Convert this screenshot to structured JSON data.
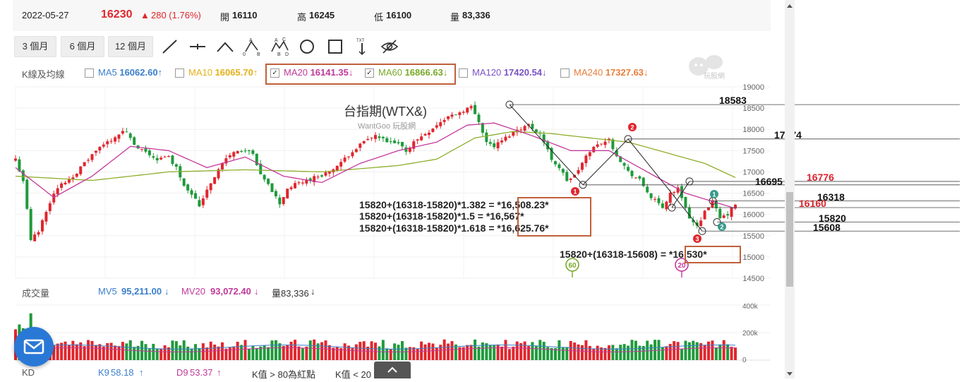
{
  "quote": {
    "date": "2022-05-27",
    "price": "16230",
    "change": "280 (1.76%)",
    "open_label": "開",
    "open": "16110",
    "high_label": "高",
    "high": "16245",
    "low_label": "低",
    "low": "16100",
    "volume_label": "量",
    "volume": "83,336",
    "up_color": "#e0262d"
  },
  "toolbar": {
    "periods": [
      "3 個月",
      "6 個月",
      "12 個月"
    ],
    "tools": [
      "line-tool-icon",
      "hline-tool-icon",
      "wave-tool-icon",
      "abc-tool-icon",
      "abcd-tool-icon",
      "circle-tool-icon",
      "rect-tool-icon",
      "text-tool-icon",
      "hide-tool-icon"
    ],
    "tool_letters": {
      "a": "A",
      "b": "B",
      "c": "C",
      "d": "D",
      "zero": "0",
      "txt": "TXT"
    }
  },
  "ma": {
    "label": "K線及均線",
    "items": [
      {
        "name": "MA5",
        "value": "16062.60",
        "arrow": "↑",
        "checked": false,
        "color": "#3b7fcb"
      },
      {
        "name": "MA10",
        "value": "16065.70",
        "arrow": "↑",
        "checked": false,
        "color": "#e5b01a"
      },
      {
        "name": "MA20",
        "value": "16141.35",
        "arrow": "↓",
        "checked": true,
        "color": "#c0399a"
      },
      {
        "name": "MA60",
        "value": "16866.63",
        "arrow": "↓",
        "checked": true,
        "color": "#7aa92a"
      },
      {
        "name": "MA120",
        "value": "17420.54",
        "arrow": "↓",
        "checked": false,
        "color": "#7a52c7"
      },
      {
        "name": "MA240",
        "value": "17327.63",
        "arrow": "↓",
        "checked": false,
        "color": "#e77e3b"
      }
    ]
  },
  "logo_text": "玩股網",
  "chart_title": "台指期(WTX&)",
  "chart_subtitle": "WantGoo 玩股網",
  "annotations": {
    "fib1": "15820+(16318-15820)*1.382 = ",
    "fib1_val": "*16,508.23*",
    "fib2": "15820+(16318-15820)*1.5 = *16,567*",
    "fib3": "15820+(16318-15820)*1.618 = ",
    "fib3_val": "*16,625.76*",
    "calc": "15820+(16318-15608) = ",
    "calc_val": "*16,530*"
  },
  "levels": {
    "l18583": "18583",
    "l17774": "17774",
    "l16776": "16776",
    "l16695": "16695",
    "l16318": "16318",
    "l16160": "16160",
    "l15820": "15820",
    "l15608": "15608"
  },
  "markers": {
    "m1": "1",
    "m2": "2",
    "m3": "3",
    "g1": "1",
    "g2": "2",
    "c60": "60",
    "c20": "20"
  },
  "chart_data": {
    "type": "candlestick",
    "title": "台指期(WTX&)",
    "ylim": [
      14500,
      19000
    ],
    "yticks": [
      "19000",
      "18500",
      "18000",
      "17500",
      "17000",
      "16500",
      "16000",
      "15500",
      "15000",
      "14500"
    ],
    "close_path": [
      [
        0,
        17300
      ],
      [
        2,
        16800
      ],
      [
        4,
        15400
      ],
      [
        6,
        15600
      ],
      [
        8,
        16100
      ],
      [
        10,
        16500
      ],
      [
        12,
        16700
      ],
      [
        15,
        16900
      ],
      [
        18,
        17200
      ],
      [
        21,
        17500
      ],
      [
        24,
        17700
      ],
      [
        27,
        17900
      ],
      [
        29,
        17950
      ],
      [
        31,
        17600
      ],
      [
        34,
        17450
      ],
      [
        37,
        17300
      ],
      [
        40,
        17350
      ],
      [
        42,
        17100
      ],
      [
        44,
        16700
      ],
      [
        46,
        16500
      ],
      [
        48,
        16200
      ],
      [
        50,
        16600
      ],
      [
        52,
        16900
      ],
      [
        54,
        17200
      ],
      [
        56,
        17400
      ],
      [
        58,
        17500
      ],
      [
        60,
        17500
      ],
      [
        62,
        17400
      ],
      [
        64,
        16900
      ],
      [
        66,
        16700
      ],
      [
        68,
        16400
      ],
      [
        69,
        16250
      ],
      [
        71,
        16600
      ],
      [
        73,
        16700
      ],
      [
        76,
        16800
      ],
      [
        79,
        16900
      ],
      [
        82,
        17000
      ],
      [
        85,
        17200
      ],
      [
        88,
        17500
      ],
      [
        91,
        17700
      ],
      [
        94,
        17850
      ],
      [
        97,
        17700
      ],
      [
        100,
        17650
      ],
      [
        102,
        17500
      ],
      [
        104,
        17700
      ],
      [
        107,
        17900
      ],
      [
        110,
        18100
      ],
      [
        113,
        18300
      ],
      [
        116,
        18400
      ],
      [
        118,
        18500
      ],
      [
        119,
        18520
      ],
      [
        121,
        18200
      ],
      [
        123,
        17700
      ],
      [
        125,
        17600
      ],
      [
        128,
        17800
      ],
      [
        131,
        18000
      ],
      [
        134,
        18100
      ],
      [
        137,
        17900
      ],
      [
        140,
        17300
      ],
      [
        142,
        17100
      ],
      [
        144,
        16800
      ],
      [
        146,
        16900
      ],
      [
        148,
        17200
      ],
      [
        150,
        17500
      ],
      [
        153,
        17700
      ],
      [
        155,
        17750
      ],
      [
        157,
        17400
      ],
      [
        160,
        17000
      ],
      [
        163,
        16800
      ],
      [
        166,
        16400
      ],
      [
        169,
        16150
      ],
      [
        171,
        16500
      ],
      [
        173,
        16600
      ],
      [
        175,
        16200
      ],
      [
        176,
        15900
      ],
      [
        178,
        15700
      ],
      [
        180,
        16100
      ],
      [
        182,
        16300
      ],
      [
        184,
        15900
      ],
      [
        186,
        16000
      ],
      [
        188,
        16230
      ]
    ],
    "ma20": [
      [
        0,
        17100
      ],
      [
        10,
        16400
      ],
      [
        20,
        16900
      ],
      [
        30,
        17600
      ],
      [
        40,
        17500
      ],
      [
        50,
        17100
      ],
      [
        60,
        17350
      ],
      [
        70,
        16900
      ],
      [
        80,
        16750
      ],
      [
        90,
        17200
      ],
      [
        100,
        17500
      ],
      [
        110,
        17700
      ],
      [
        118,
        18100
      ],
      [
        125,
        18150
      ],
      [
        135,
        17850
      ],
      [
        145,
        17500
      ],
      [
        155,
        17500
      ],
      [
        165,
        17000
      ],
      [
        175,
        16500
      ],
      [
        188,
        16141
      ]
    ],
    "ma60": [
      [
        0,
        16900
      ],
      [
        20,
        16800
      ],
      [
        40,
        17000
      ],
      [
        60,
        17050
      ],
      [
        80,
        17000
      ],
      [
        100,
        17150
      ],
      [
        110,
        17300
      ],
      [
        120,
        17800
      ],
      [
        130,
        17950
      ],
      [
        140,
        17900
      ],
      [
        150,
        17800
      ],
      [
        160,
        17700
      ],
      [
        170,
        17450
      ],
      [
        180,
        17200
      ],
      [
        188,
        16867
      ]
    ],
    "levels": [
      18583,
      17774,
      16776,
      16695,
      16318,
      16160,
      15820,
      15608
    ],
    "volume": {
      "label": "成交量",
      "ylim": [
        0,
        400000
      ],
      "yticks": [
        "400k",
        "200k",
        "0"
      ]
    }
  },
  "volume": {
    "label": "成交量",
    "mv5": "MV5",
    "mv5_val": "95,211.00",
    "mv5_arrow": "↓",
    "mv20": "MV20",
    "mv20_val": "93,072.40",
    "mv20_arrow": "↓",
    "vol": "量83,336",
    "vol_arrow": "↓"
  },
  "kd": {
    "label": "KD",
    "k9": "K9",
    "k9_val": "58.18",
    "k9_arrow": "↑",
    "d9": "D9",
    "d9_val": "53.37",
    "d9_arrow": "↑",
    "k80": "K值 > 80為紅點",
    "k20": "K值 < 20"
  }
}
